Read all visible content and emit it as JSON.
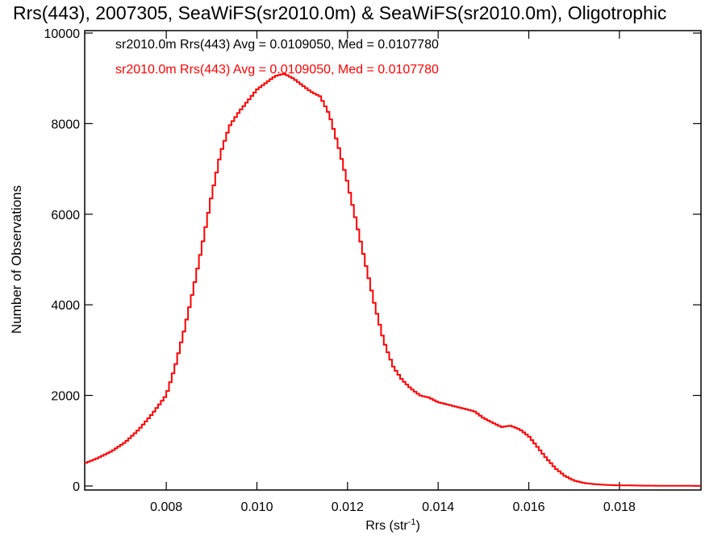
{
  "chart_data": {
    "type": "line",
    "title": "Rrs(443), 2007305, SeaWiFS(sr2010.0m) & SeaWiFS(sr2010.0m), Oligotrophic",
    "xlabel_main": "Rrs (str",
    "xlabel_sup": "-1",
    "xlabel_close": ")",
    "ylabel": "Number of Observations",
    "xlim": [
      0.0062,
      0.0198
    ],
    "ylim": [
      0,
      10000
    ],
    "x_ticks": [
      0.008,
      0.01,
      0.012,
      0.014,
      0.016,
      0.018
    ],
    "x_tick_labels": [
      "0.008",
      "0.010",
      "0.012",
      "0.014",
      "0.016",
      "0.018"
    ],
    "y_ticks": [
      0,
      2000,
      4000,
      6000,
      8000,
      10000
    ],
    "y_tick_labels": [
      "0",
      "2000",
      "4000",
      "6000",
      "8000",
      "10000"
    ],
    "annotations": [
      {
        "text": "sr2010.0m Rrs(443) Avg = 0.0109050, Med = 0.0107780",
        "color": "#000000"
      },
      {
        "text": "sr2010.0m Rrs(443) Avg = 0.0109050, Med = 0.0107780",
        "color": "#ff0000"
      }
    ],
    "series": [
      {
        "color": "#ff0000",
        "x": [
          0.0062,
          0.0065,
          0.0068,
          0.0071,
          0.0074,
          0.0077,
          0.008,
          0.0082,
          0.0084,
          0.0086,
          0.0088,
          0.009,
          0.0092,
          0.0094,
          0.0096,
          0.0098,
          0.01,
          0.0102,
          0.0104,
          0.0106,
          0.0108,
          0.011,
          0.0112,
          0.0114,
          0.0116,
          0.0118,
          0.012,
          0.0122,
          0.0124,
          0.0126,
          0.0128,
          0.013,
          0.0132,
          0.0134,
          0.0136,
          0.0138,
          0.014,
          0.0142,
          0.0144,
          0.0146,
          0.0148,
          0.015,
          0.0152,
          0.0154,
          0.0156,
          0.0158,
          0.016,
          0.0162,
          0.0164,
          0.0166,
          0.0168,
          0.017,
          0.0172,
          0.0174,
          0.0176,
          0.0178,
          0.018,
          0.0185,
          0.019,
          0.0198
        ],
        "y": [
          500,
          620,
          770,
          970,
          1250,
          1600,
          2000,
          2650,
          3450,
          4350,
          5350,
          6400,
          7350,
          7950,
          8250,
          8500,
          8750,
          8900,
          9050,
          9100,
          9000,
          8850,
          8700,
          8600,
          8200,
          7500,
          6700,
          5800,
          4900,
          4000,
          3200,
          2650,
          2350,
          2150,
          2000,
          1950,
          1850,
          1800,
          1750,
          1700,
          1650,
          1500,
          1400,
          1300,
          1330,
          1250,
          1100,
          850,
          600,
          380,
          220,
          120,
          70,
          45,
          30,
          20,
          15,
          8,
          5,
          2
        ]
      }
    ]
  }
}
